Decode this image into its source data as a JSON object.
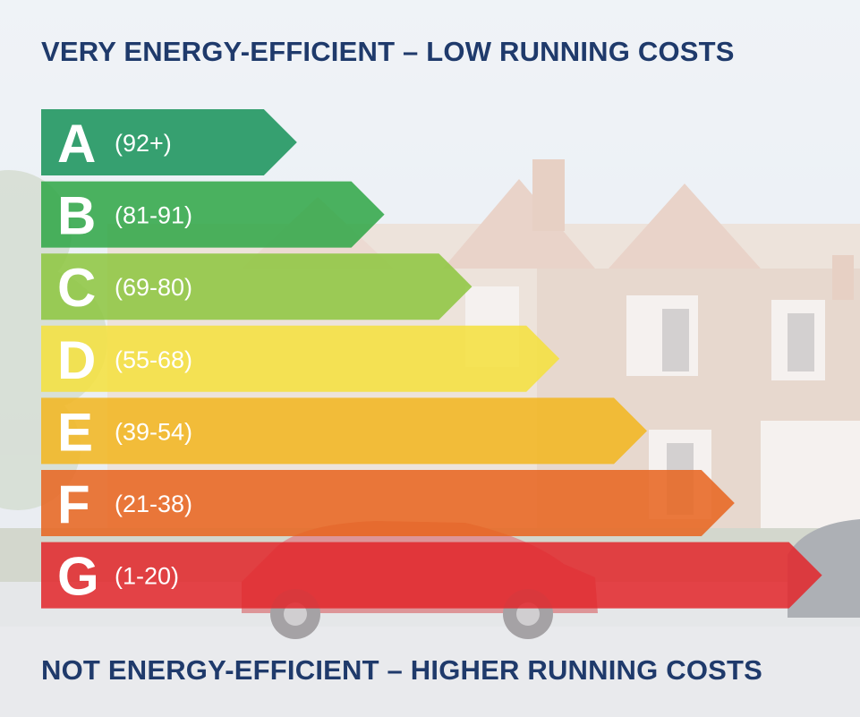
{
  "header": {
    "title": "VERY ENERGY-EFFICIENT – LOW RUNNING COSTS"
  },
  "footer": {
    "title": "NOT ENERGY-EFFICIENT – HIGHER RUNNING COSTS"
  },
  "chart_data": {
    "type": "bar",
    "orientation": "horizontal",
    "title": "",
    "categories": [
      "A",
      "B",
      "C",
      "D",
      "E",
      "F",
      "G"
    ],
    "range_labels": [
      "(92+)",
      "(81-91)",
      "(69-80)",
      "(55-68)",
      "(39-54)",
      "(21-38)",
      "(1-20)"
    ],
    "values": [
      1,
      2,
      3,
      4,
      5,
      6,
      7
    ],
    "colors": [
      "#17935a",
      "#2ea646",
      "#8dc63f",
      "#f4e13c",
      "#f2b61e",
      "#e8641e",
      "#e2262b"
    ],
    "xlabel": "",
    "ylabel": "",
    "grid": false,
    "legend": "none"
  }
}
